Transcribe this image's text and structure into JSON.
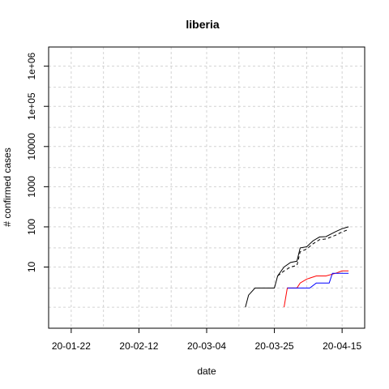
{
  "chart_data": {
    "type": "line",
    "title": "liberia",
    "xlabel": "date",
    "ylabel": "# confirmed cases",
    "x_scale": "date",
    "y_scale": "log10",
    "xlim": [
      "2020-01-15",
      "2020-04-22"
    ],
    "ylim": [
      0.3,
      3000000
    ],
    "grid": true,
    "grid_style": "dashed-lightgray",
    "x_ticks": [
      {
        "date": "2020-01-22",
        "label": "20-01-22"
      },
      {
        "date": "2020-02-12",
        "label": "20-02-12"
      },
      {
        "date": "2020-03-04",
        "label": "20-03-04"
      },
      {
        "date": "2020-03-25",
        "label": "20-03-25"
      },
      {
        "date": "2020-04-15",
        "label": "20-04-15"
      }
    ],
    "x_minor_grid_dates": [
      "2020-01-22",
      "2020-02-01",
      "2020-02-12",
      "2020-02-22",
      "2020-03-04",
      "2020-03-14",
      "2020-03-25",
      "2020-04-04",
      "2020-04-15"
    ],
    "y_ticks": [
      {
        "value": 10,
        "label": "10"
      },
      {
        "value": 100,
        "label": "100"
      },
      {
        "value": 1000,
        "label": "1000"
      },
      {
        "value": 10000,
        "label": "10000"
      },
      {
        "value": 100000,
        "label": "1e+05"
      },
      {
        "value": 1000000,
        "label": "1e+06"
      }
    ],
    "y_grid_values": [
      1,
      3,
      10,
      30,
      100,
      300,
      1000,
      3000,
      10000,
      30000,
      100000,
      300000,
      1000000
    ],
    "series": [
      {
        "color": "#000000",
        "dash": "solid",
        "points": [
          [
            "2020-03-16",
            1
          ],
          [
            "2020-03-17",
            2
          ],
          [
            "2020-03-19",
            3
          ],
          [
            "2020-03-25",
            3
          ],
          [
            "2020-03-26",
            6
          ],
          [
            "2020-03-28",
            10
          ],
          [
            "2020-03-30",
            13
          ],
          [
            "2020-04-01",
            14
          ],
          [
            "2020-04-02",
            30
          ],
          [
            "2020-04-04",
            32
          ],
          [
            "2020-04-06",
            45
          ],
          [
            "2020-04-08",
            56
          ],
          [
            "2020-04-10",
            57
          ],
          [
            "2020-04-13",
            76
          ],
          [
            "2020-04-15",
            90
          ],
          [
            "2020-04-17",
            100
          ]
        ]
      },
      {
        "color": "#000000",
        "dash": "dashed",
        "points": [
          [
            "2020-03-26",
            6
          ],
          [
            "2020-03-28",
            8
          ],
          [
            "2020-03-30",
            10
          ],
          [
            "2020-04-01",
            11
          ],
          [
            "2020-04-02",
            24
          ],
          [
            "2020-04-04",
            28
          ],
          [
            "2020-04-06",
            38
          ],
          [
            "2020-04-08",
            48
          ],
          [
            "2020-04-10",
            50
          ],
          [
            "2020-04-13",
            62
          ],
          [
            "2020-04-15",
            75
          ],
          [
            "2020-04-17",
            85
          ]
        ]
      },
      {
        "color": "#ff0000",
        "dash": "solid",
        "points": [
          [
            "2020-03-28",
            1
          ],
          [
            "2020-03-29",
            3
          ],
          [
            "2020-04-01",
            3
          ],
          [
            "2020-04-02",
            4
          ],
          [
            "2020-04-04",
            5
          ],
          [
            "2020-04-07",
            6
          ],
          [
            "2020-04-10",
            6
          ],
          [
            "2020-04-13",
            7
          ],
          [
            "2020-04-15",
            8
          ],
          [
            "2020-04-17",
            8
          ]
        ]
      },
      {
        "color": "#0000ff",
        "dash": "solid",
        "points": [
          [
            "2020-03-29",
            3
          ],
          [
            "2020-04-05",
            3
          ],
          [
            "2020-04-07",
            4
          ],
          [
            "2020-04-11",
            4
          ],
          [
            "2020-04-12",
            7
          ],
          [
            "2020-04-17",
            7
          ]
        ]
      }
    ]
  }
}
